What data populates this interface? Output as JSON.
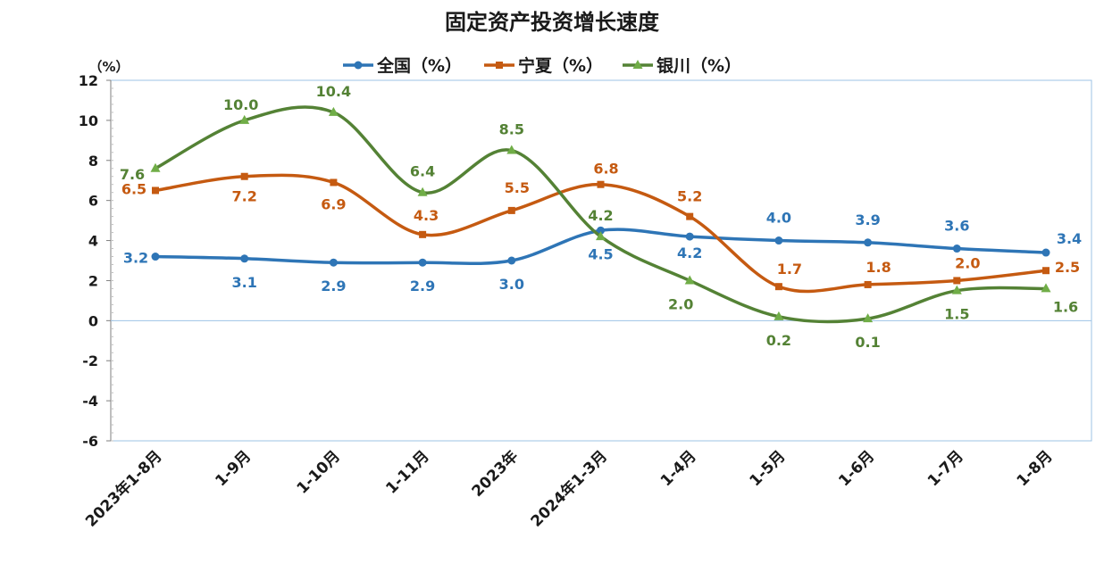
{
  "chart_data": {
    "type": "line",
    "title": "固定资产投资增长速度",
    "ylabel": "（%）",
    "ylim": [
      -6,
      12
    ],
    "yticks": [
      "12",
      "10",
      "8",
      "6",
      "4",
      "2",
      "0",
      "-2",
      "-4",
      "-6"
    ],
    "categories": [
      "2023年1-8月",
      "1-9月",
      "1-10月",
      "1-11月",
      "2023年",
      "2024年1-3月",
      "1-4月",
      "1-5月",
      "1-6月",
      "1-7月",
      "1-8月"
    ],
    "legend_position": "top",
    "series": [
      {
        "name": "全国（%）",
        "color": "#2e75b6",
        "marker": "circle",
        "values": [
          3.2,
          3.1,
          2.9,
          2.9,
          3.0,
          4.5,
          4.2,
          4.0,
          3.9,
          3.6,
          3.4
        ],
        "labels": [
          "3.2",
          "3.1",
          "2.9",
          "2.9",
          "3.0",
          "4.5",
          "4.2",
          "4.0",
          "3.9",
          "3.6",
          "3.4"
        ]
      },
      {
        "name": "宁夏（%）",
        "color": "#c55a11",
        "marker": "square",
        "values": [
          6.5,
          7.2,
          6.9,
          4.3,
          5.5,
          6.8,
          5.2,
          1.7,
          1.8,
          2.0,
          2.5
        ],
        "labels": [
          "6.5",
          "7.2",
          "6.9",
          "4.3",
          "5.5",
          "6.8",
          "5.2",
          "1.7",
          "1.8",
          "2.0",
          "2.5"
        ]
      },
      {
        "name": "银川（%）",
        "color": "#548235",
        "marker": "triangle",
        "values": [
          7.6,
          10.0,
          10.4,
          6.4,
          8.5,
          4.2,
          2.0,
          0.2,
          0.1,
          1.5,
          1.6
        ],
        "labels": [
          "7.6",
          "10.0",
          "10.4",
          "6.4",
          "8.5",
          "4.2",
          "2.0",
          "0.2",
          "0.1",
          "1.5",
          "1.6"
        ]
      }
    ]
  }
}
